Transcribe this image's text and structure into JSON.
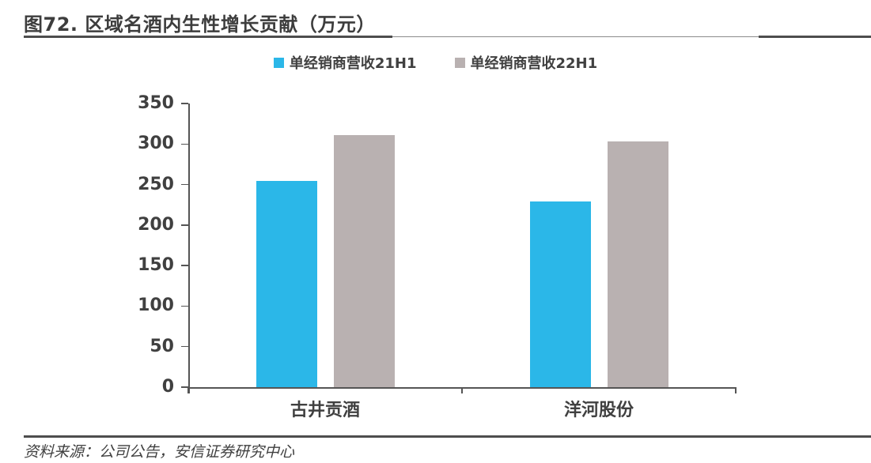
{
  "figure": {
    "title": "图72. 区域名酒内生性增长贡献（万元）",
    "source": "资料来源：公司公告，安信证券研究中心"
  },
  "chart_data": {
    "type": "bar",
    "title": "区域名酒内生性增长贡献（万元）",
    "categories": [
      "古井贡酒",
      "洋河股份"
    ],
    "series": [
      {
        "name": "单经销商营收21H1",
        "color": "#2BB7E8",
        "values": [
          254,
          229
        ]
      },
      {
        "name": "单经销商营收22H1",
        "color": "#B9B1B1",
        "values": [
          311,
          303
        ]
      }
    ],
    "xlabel": "",
    "ylabel": "",
    "ylim": [
      0,
      350
    ],
    "yticks": [
      0,
      50,
      100,
      150,
      200,
      250,
      300,
      350
    ],
    "grid": false,
    "legend_position": "top"
  }
}
